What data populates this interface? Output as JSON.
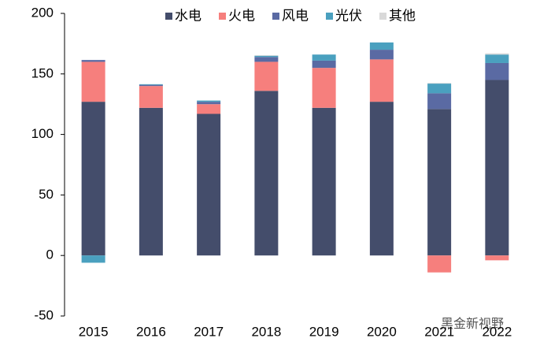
{
  "chart_data": {
    "type": "stacked_bar",
    "categories": [
      "2015",
      "2016",
      "2017",
      "2018",
      "2019",
      "2020",
      "2021",
      "2022"
    ],
    "series": [
      {
        "name": "水电",
        "color": "#444d6b",
        "values": [
          127,
          122,
          117,
          136,
          122,
          127,
          121,
          145
        ]
      },
      {
        "name": "火电",
        "color": "#f67f7d",
        "values": [
          33,
          18,
          8,
          24,
          33,
          35,
          -14,
          -4
        ]
      },
      {
        "name": "风电",
        "color": "#5a6aa3",
        "values": [
          1.5,
          1,
          2,
          4,
          6,
          8,
          13,
          14
        ]
      },
      {
        "name": "光伏",
        "color": "#4aa0bf",
        "values": [
          -6,
          0.5,
          1,
          1,
          5,
          6,
          8,
          7
        ]
      },
      {
        "name": "其他",
        "color": "#d9d9d9",
        "values": [
          0,
          0,
          0,
          0.5,
          0,
          0,
          0.5,
          1
        ]
      }
    ],
    "ylim": [
      -50,
      200
    ],
    "yticks": [
      -50,
      0,
      50,
      100,
      150,
      200
    ],
    "legend": "top",
    "watermark": "黑金新视野"
  }
}
